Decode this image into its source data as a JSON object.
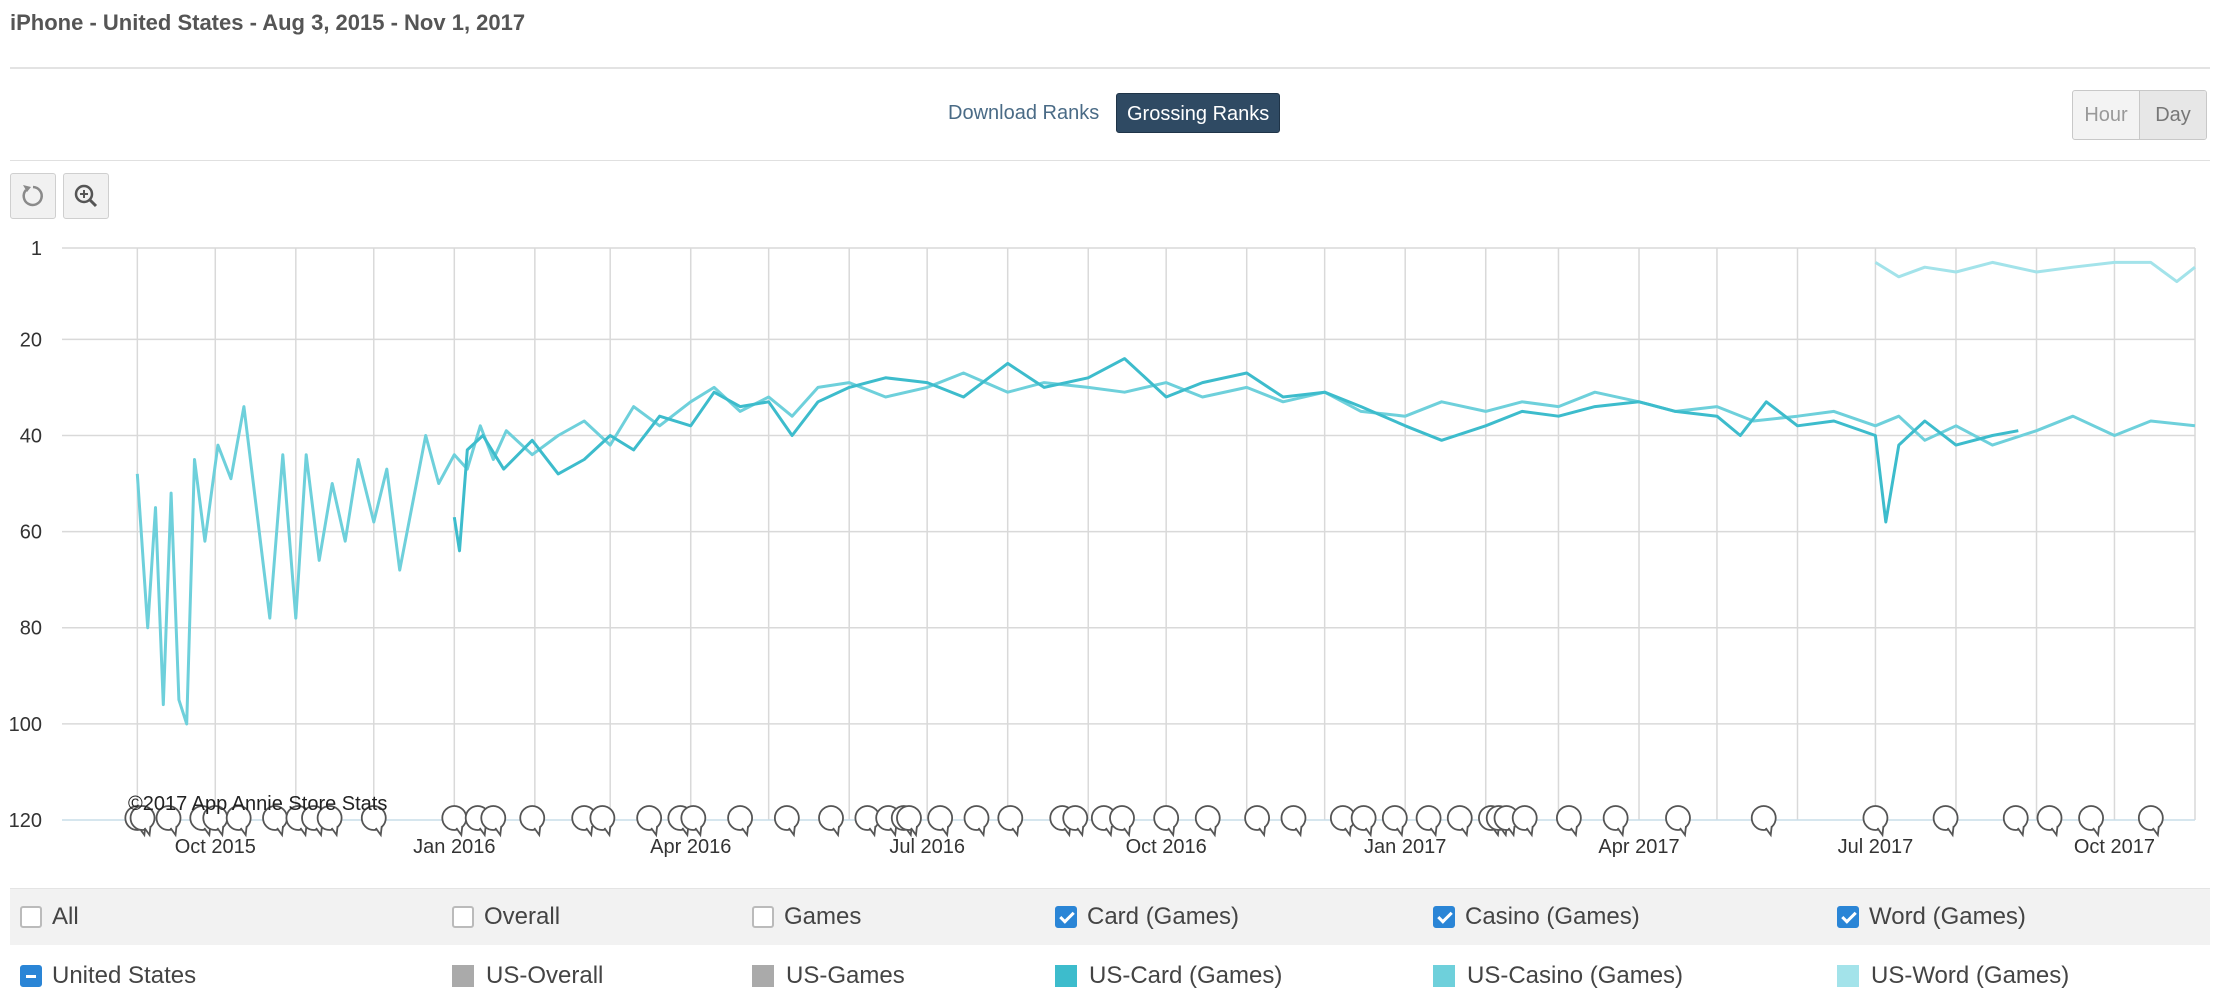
{
  "header": {
    "title": "iPhone - United States - Aug 3, 2015 - Nov 1, 2017"
  },
  "rank_tabs": {
    "download": "Download Ranks",
    "grossing": "Grossing Ranks",
    "active": "grossing"
  },
  "granularity": {
    "hour": "Hour",
    "day": "Day",
    "active": "day"
  },
  "toolbar": {
    "reset_icon": "reset-icon",
    "zoom_icon": "zoom-in-icon"
  },
  "colors": {
    "card": "#3dbccc",
    "casino": "#6ed0db",
    "word": "#a3e3ea",
    "overall": "#aaaaaa",
    "games": "#aaaaaa",
    "grid": "#d9d9d9",
    "checkbox": "#2a85d6"
  },
  "chart_data": {
    "type": "line",
    "x_range": [
      "2015-08-03",
      "2017-11-01"
    ],
    "y_range": [
      1,
      120
    ],
    "y_reversed": true,
    "y_ticks": [
      1,
      20,
      40,
      60,
      80,
      100,
      120
    ],
    "x_ticks": [
      "Oct 2015",
      "Jan 2016",
      "Apr 2016",
      "Jul 2016",
      "Oct 2016",
      "Jan 2017",
      "Apr 2017",
      "Jul 2017",
      "Oct 2017"
    ],
    "x_tick_dates": [
      "2015-10-01",
      "2016-01-01",
      "2016-04-01",
      "2016-07-01",
      "2016-10-01",
      "2017-01-01",
      "2017-04-01",
      "2017-07-01",
      "2017-10-01"
    ],
    "watermark": "©2017 App Annie Store Stats",
    "grid": true,
    "series": [
      {
        "name": "US-Casino (Games)",
        "color": "#6ed0db",
        "points": [
          [
            "2015-09-01",
            48
          ],
          [
            "2015-09-05",
            80
          ],
          [
            "2015-09-08",
            55
          ],
          [
            "2015-09-11",
            96
          ],
          [
            "2015-09-14",
            52
          ],
          [
            "2015-09-17",
            95
          ],
          [
            "2015-09-20",
            100
          ],
          [
            "2015-09-23",
            45
          ],
          [
            "2015-09-27",
            62
          ],
          [
            "2015-10-02",
            42
          ],
          [
            "2015-10-07",
            49
          ],
          [
            "2015-10-12",
            34
          ],
          [
            "2015-10-17",
            56
          ],
          [
            "2015-10-22",
            78
          ],
          [
            "2015-10-27",
            44
          ],
          [
            "2015-11-01",
            78
          ],
          [
            "2015-11-05",
            44
          ],
          [
            "2015-11-10",
            66
          ],
          [
            "2015-11-15",
            50
          ],
          [
            "2015-11-20",
            62
          ],
          [
            "2015-11-25",
            45
          ],
          [
            "2015-12-01",
            58
          ],
          [
            "2015-12-06",
            47
          ],
          [
            "2015-12-11",
            68
          ],
          [
            "2015-12-16",
            54
          ],
          [
            "2015-12-21",
            40
          ],
          [
            "2015-12-26",
            50
          ],
          [
            "2016-01-01",
            44
          ],
          [
            "2016-01-06",
            47
          ],
          [
            "2016-01-11",
            38
          ],
          [
            "2016-01-16",
            45
          ],
          [
            "2016-01-21",
            39
          ],
          [
            "2016-01-31",
            44
          ],
          [
            "2016-02-10",
            40
          ],
          [
            "2016-02-20",
            37
          ],
          [
            "2016-03-01",
            42
          ],
          [
            "2016-03-10",
            34
          ],
          [
            "2016-03-20",
            38
          ],
          [
            "2016-04-01",
            33
          ],
          [
            "2016-04-10",
            30
          ],
          [
            "2016-04-20",
            35
          ],
          [
            "2016-05-01",
            32
          ],
          [
            "2016-05-10",
            36
          ],
          [
            "2016-05-20",
            30
          ],
          [
            "2016-06-01",
            29
          ],
          [
            "2016-06-15",
            32
          ],
          [
            "2016-07-01",
            30
          ],
          [
            "2016-07-15",
            27
          ],
          [
            "2016-08-01",
            31
          ],
          [
            "2016-08-15",
            29
          ],
          [
            "2016-09-01",
            30
          ],
          [
            "2016-09-15",
            31
          ],
          [
            "2016-10-01",
            29
          ],
          [
            "2016-10-15",
            32
          ],
          [
            "2016-11-01",
            30
          ],
          [
            "2016-11-15",
            33
          ],
          [
            "2016-12-01",
            31
          ],
          [
            "2016-12-15",
            35
          ],
          [
            "2017-01-01",
            36
          ],
          [
            "2017-01-15",
            33
          ],
          [
            "2017-02-01",
            35
          ],
          [
            "2017-02-15",
            33
          ],
          [
            "2017-03-01",
            34
          ],
          [
            "2017-03-15",
            31
          ],
          [
            "2017-04-01",
            33
          ],
          [
            "2017-04-15",
            35
          ],
          [
            "2017-05-01",
            34
          ],
          [
            "2017-05-15",
            37
          ],
          [
            "2017-06-01",
            36
          ],
          [
            "2017-06-15",
            35
          ],
          [
            "2017-07-01",
            38
          ],
          [
            "2017-07-10",
            36
          ],
          [
            "2017-07-20",
            41
          ],
          [
            "2017-08-01",
            38
          ],
          [
            "2017-08-15",
            42
          ],
          [
            "2017-09-01",
            39
          ],
          [
            "2017-09-15",
            36
          ],
          [
            "2017-10-01",
            40
          ],
          [
            "2017-10-15",
            37
          ],
          [
            "2017-11-01",
            38
          ]
        ]
      },
      {
        "name": "US-Card (Games)",
        "color": "#3dbccc",
        "points": [
          [
            "2016-01-01",
            57
          ],
          [
            "2016-01-03",
            64
          ],
          [
            "2016-01-06",
            43
          ],
          [
            "2016-01-12",
            40
          ],
          [
            "2016-01-20",
            47
          ],
          [
            "2016-01-31",
            41
          ],
          [
            "2016-02-10",
            48
          ],
          [
            "2016-02-20",
            45
          ],
          [
            "2016-03-01",
            40
          ],
          [
            "2016-03-10",
            43
          ],
          [
            "2016-03-20",
            36
          ],
          [
            "2016-04-01",
            38
          ],
          [
            "2016-04-10",
            31
          ],
          [
            "2016-04-20",
            34
          ],
          [
            "2016-05-01",
            33
          ],
          [
            "2016-05-10",
            40
          ],
          [
            "2016-05-20",
            33
          ],
          [
            "2016-06-01",
            30
          ],
          [
            "2016-06-15",
            28
          ],
          [
            "2016-07-01",
            29
          ],
          [
            "2016-07-15",
            32
          ],
          [
            "2016-08-01",
            25
          ],
          [
            "2016-08-15",
            30
          ],
          [
            "2016-09-01",
            28
          ],
          [
            "2016-09-15",
            24
          ],
          [
            "2016-10-01",
            32
          ],
          [
            "2016-10-15",
            29
          ],
          [
            "2016-11-01",
            27
          ],
          [
            "2016-11-15",
            32
          ],
          [
            "2016-12-01",
            31
          ],
          [
            "2016-12-15",
            34
          ],
          [
            "2017-01-01",
            38
          ],
          [
            "2017-01-15",
            41
          ],
          [
            "2017-02-01",
            38
          ],
          [
            "2017-02-15",
            35
          ],
          [
            "2017-03-01",
            36
          ],
          [
            "2017-03-15",
            34
          ],
          [
            "2017-04-01",
            33
          ],
          [
            "2017-04-15",
            35
          ],
          [
            "2017-05-01",
            36
          ],
          [
            "2017-05-10",
            40
          ],
          [
            "2017-05-20",
            33
          ],
          [
            "2017-06-01",
            38
          ],
          [
            "2017-06-15",
            37
          ],
          [
            "2017-07-01",
            40
          ],
          [
            "2017-07-05",
            58
          ],
          [
            "2017-07-10",
            42
          ],
          [
            "2017-07-20",
            37
          ],
          [
            "2017-08-01",
            42
          ],
          [
            "2017-08-15",
            40
          ],
          [
            "2017-08-25",
            39
          ]
        ]
      },
      {
        "name": "US-Word (Games)",
        "color": "#a3e3ea",
        "points": [
          [
            "2017-07-01",
            4
          ],
          [
            "2017-07-10",
            7
          ],
          [
            "2017-07-20",
            5
          ],
          [
            "2017-08-01",
            6
          ],
          [
            "2017-08-15",
            4
          ],
          [
            "2017-09-01",
            6
          ],
          [
            "2017-09-15",
            5
          ],
          [
            "2017-10-01",
            4
          ],
          [
            "2017-10-15",
            4
          ],
          [
            "2017-10-25",
            8
          ],
          [
            "2017-11-01",
            5
          ]
        ]
      }
    ],
    "event_marker_dates": [
      "2015-09-01",
      "2015-09-03",
      "2015-09-13",
      "2015-09-26",
      "2015-10-01",
      "2015-10-10",
      "2015-10-24",
      "2015-11-02",
      "2015-11-08",
      "2015-11-14",
      "2015-12-01",
      "2016-01-01",
      "2016-01-10",
      "2016-01-16",
      "2016-01-31",
      "2016-02-20",
      "2016-02-27",
      "2016-03-16",
      "2016-03-28",
      "2016-04-02",
      "2016-04-20",
      "2016-05-08",
      "2016-05-25",
      "2016-06-08",
      "2016-06-16",
      "2016-06-22",
      "2016-06-24",
      "2016-07-06",
      "2016-07-20",
      "2016-08-02",
      "2016-08-22",
      "2016-08-27",
      "2016-09-07",
      "2016-09-14",
      "2016-10-01",
      "2016-10-17",
      "2016-11-05",
      "2016-11-19",
      "2016-12-08",
      "2016-12-16",
      "2016-12-28",
      "2017-01-10",
      "2017-01-22",
      "2017-02-03",
      "2017-02-06",
      "2017-02-09",
      "2017-02-16",
      "2017-03-05",
      "2017-03-23",
      "2017-04-16",
      "2017-05-19",
      "2017-07-01",
      "2017-07-28",
      "2017-08-24",
      "2017-09-06",
      "2017-09-22",
      "2017-10-15"
    ]
  },
  "legend": {
    "row1": [
      {
        "label": "All",
        "state": "off"
      },
      {
        "label": "Overall",
        "state": "off"
      },
      {
        "label": "Games",
        "state": "off"
      },
      {
        "label": "Card (Games)",
        "state": "on"
      },
      {
        "label": "Casino (Games)",
        "state": "on"
      },
      {
        "label": "Word (Games)",
        "state": "on"
      }
    ],
    "row2": [
      {
        "label": "United States",
        "state": "minus"
      },
      {
        "label": "US-Overall",
        "color": "#aaaaaa"
      },
      {
        "label": "US-Games",
        "color": "#aaaaaa"
      },
      {
        "label": "US-Card (Games)",
        "color": "#3dbccc"
      },
      {
        "label": "US-Casino (Games)",
        "color": "#6ed0db"
      },
      {
        "label": "US-Word (Games)",
        "color": "#a3e3ea"
      }
    ]
  }
}
